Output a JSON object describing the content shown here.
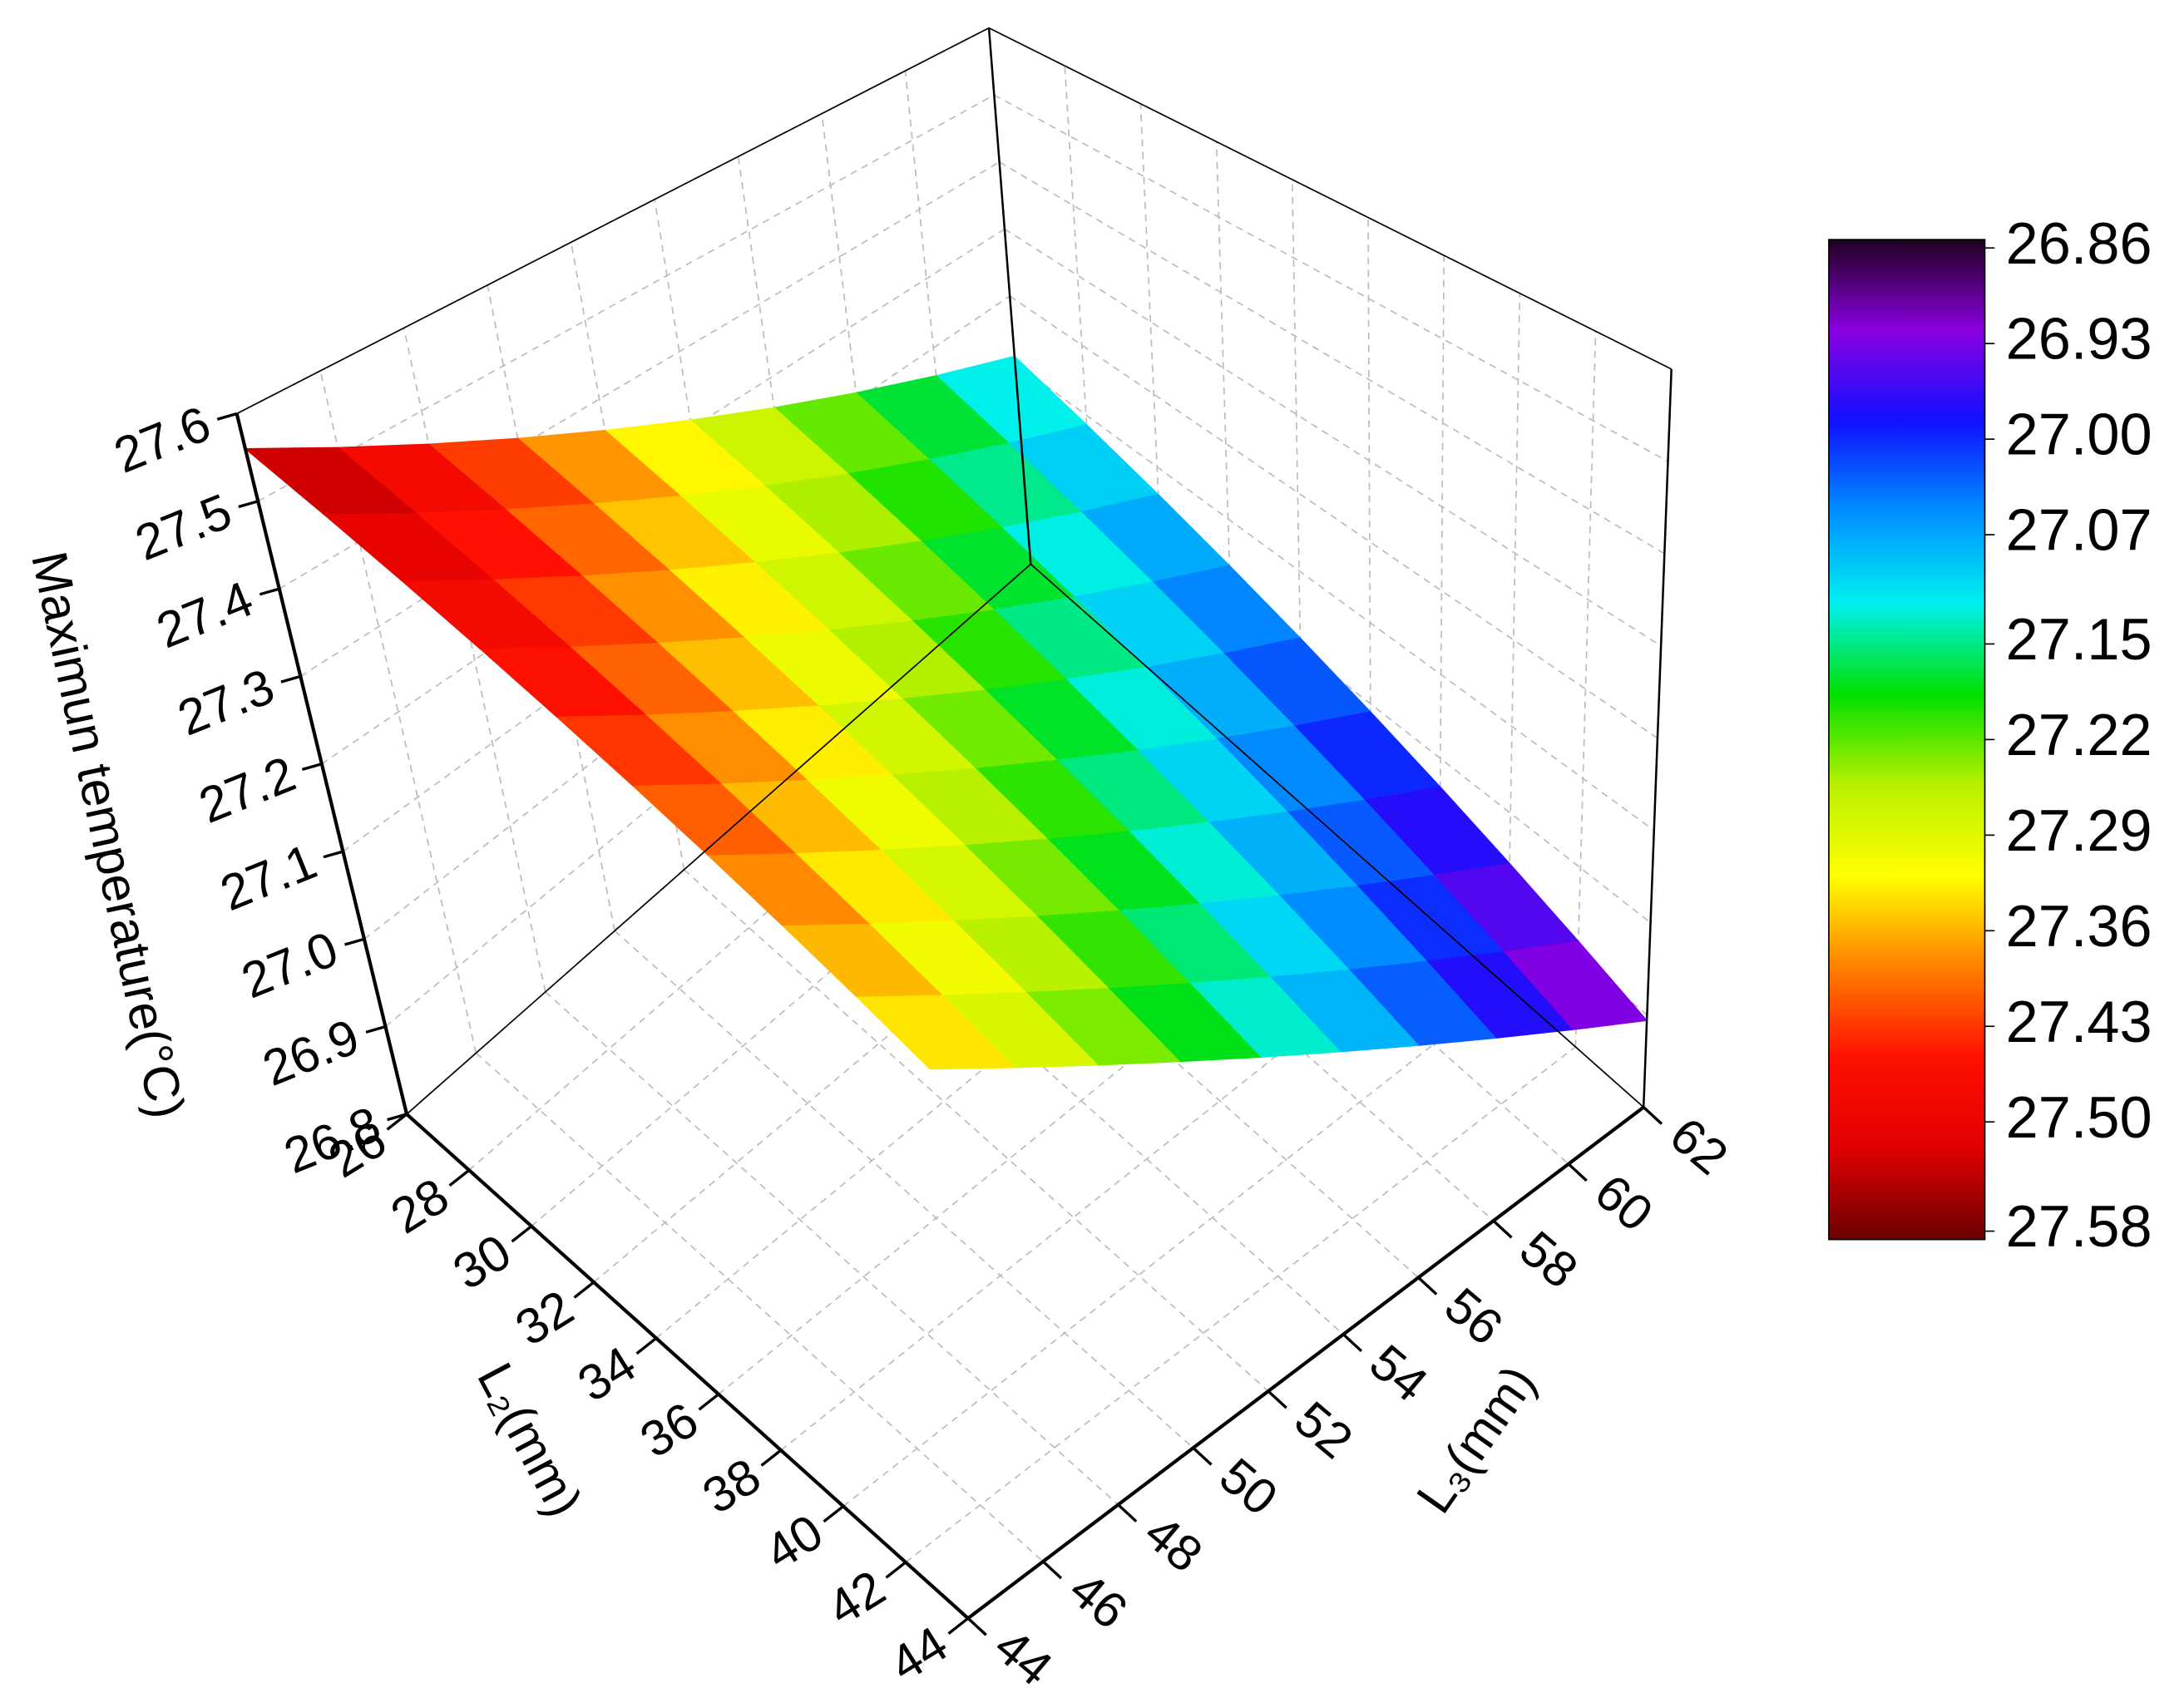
{
  "chart_data": {
    "type": "surface",
    "xlabel": "L₂(mm)",
    "ylabel": "L₃(mm)",
    "zlabel": "Maximun temperature(°C)",
    "x": [
      26,
      28,
      30,
      32,
      34,
      36,
      38,
      40,
      42,
      44
    ],
    "y": [
      44,
      46,
      48,
      50,
      52,
      54,
      56,
      58,
      60,
      62
    ],
    "z": [
      [
        27.56,
        27.51,
        27.46,
        27.41,
        27.36,
        27.31,
        27.26,
        27.21,
        27.16,
        27.11
      ],
      [
        27.536,
        27.486,
        27.436,
        27.386,
        27.336,
        27.286,
        27.236,
        27.186,
        27.136,
        27.086
      ],
      [
        27.512,
        27.462,
        27.412,
        27.362,
        27.312,
        27.262,
        27.212,
        27.162,
        27.112,
        27.062
      ],
      [
        27.488,
        27.438,
        27.388,
        27.338,
        27.288,
        27.238,
        27.188,
        27.138,
        27.088,
        27.038
      ],
      [
        27.464,
        27.414,
        27.364,
        27.314,
        27.264,
        27.214,
        27.164,
        27.114,
        27.064,
        27.014
      ],
      [
        27.44,
        27.39,
        27.34,
        27.29,
        27.24,
        27.19,
        27.14,
        27.09,
        27.04,
        26.99
      ],
      [
        27.416,
        27.366,
        27.316,
        27.266,
        27.216,
        27.166,
        27.116,
        27.066,
        27.016,
        26.966
      ],
      [
        27.392,
        27.342,
        27.292,
        27.242,
        27.192,
        27.142,
        27.092,
        27.042,
        26.992,
        26.942
      ],
      [
        27.368,
        27.318,
        27.268,
        27.218,
        27.168,
        27.118,
        27.068,
        27.018,
        26.968,
        26.918
      ],
      [
        27.344,
        27.294,
        27.244,
        27.194,
        27.144,
        27.094,
        27.044,
        26.994,
        26.944,
        26.894
      ]
    ],
    "xlim": [
      26,
      44
    ],
    "xticks": [
      26,
      28,
      30,
      32,
      34,
      36,
      38,
      40,
      42,
      44
    ],
    "ylim": [
      44,
      62
    ],
    "yticks": [
      44,
      46,
      48,
      50,
      52,
      54,
      56,
      58,
      60,
      62
    ],
    "zlim": [
      26.8,
      27.6
    ],
    "zticks": [
      26.8,
      26.9,
      {
        "value": 27.0,
        "label": "27.0"
      },
      27.1,
      27.2,
      27.3,
      27.4,
      27.5,
      27.6
    ],
    "grid": true,
    "colorbar": {
      "ticks": [
        26.86,
        26.93,
        {
          "value": 27.0,
          "label": "27.00"
        },
        27.07,
        27.15,
        27.22,
        27.29,
        27.36,
        27.43,
        {
          "value": 27.5,
          "label": "27.50"
        },
        27.58
      ],
      "colors": [
        "#200020",
        "#8a00e0",
        "#1010ff",
        "#0090ff",
        "#00f0f0",
        "#00e000",
        "#b8f000",
        "#ffff00",
        "#ff8000",
        "#ff1000",
        "#e00000",
        "#6a0000"
      ]
    }
  }
}
